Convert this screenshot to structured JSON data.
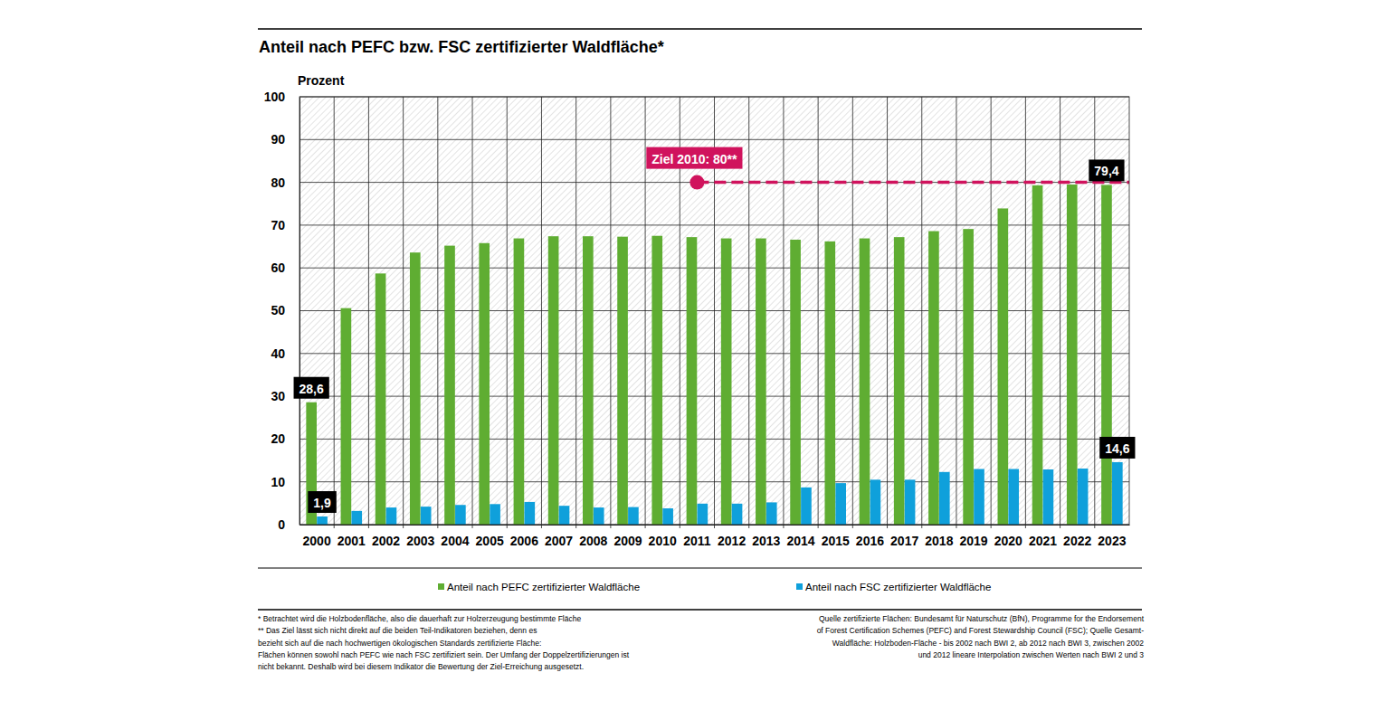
{
  "chart_data": {
    "type": "bar",
    "title": "Anteil nach PEFC bzw. FSC zertifizierter Waldfläche*",
    "y_label": "Prozent",
    "categories": [
      "2000",
      "2001",
      "2002",
      "2003",
      "2004",
      "2005",
      "2006",
      "2007",
      "2008",
      "2009",
      "2010",
      "2011",
      "2012",
      "2013",
      "2014",
      "2015",
      "2016",
      "2017",
      "2018",
      "2019",
      "2020",
      "2021",
      "2022",
      "2023"
    ],
    "series": [
      {
        "name": "Anteil nach PEFC zertifizierter Waldfläche",
        "color": "#5fad32",
        "values": [
          28.6,
          50.6,
          58.7,
          63.6,
          65.2,
          65.8,
          66.9,
          67.4,
          67.4,
          67.3,
          67.5,
          67.2,
          66.9,
          66.9,
          66.6,
          66.2,
          66.9,
          67.2,
          68.6,
          69.1,
          73.9,
          79.3,
          79.5,
          79.4
        ],
        "value_labels": [
          "28,6",
          null,
          null,
          null,
          null,
          null,
          null,
          null,
          null,
          null,
          null,
          null,
          null,
          null,
          null,
          null,
          null,
          null,
          null,
          null,
          null,
          null,
          null,
          "79,4"
        ]
      },
      {
        "name": "Anteil nach FSC zertifizierter Waldfläche",
        "color": "#0fa0db",
        "values": [
          1.9,
          3.2,
          4.0,
          4.2,
          4.6,
          4.8,
          5.3,
          4.4,
          4.0,
          4.1,
          3.8,
          4.9,
          4.9,
          5.2,
          8.7,
          9.7,
          10.5,
          10.5,
          12.3,
          13.0,
          13.0,
          12.9,
          13.1,
          14.6
        ],
        "value_labels": [
          "1,9",
          null,
          null,
          null,
          null,
          null,
          null,
          null,
          null,
          null,
          null,
          null,
          null,
          null,
          null,
          null,
          null,
          null,
          null,
          null,
          null,
          null,
          null,
          "14,6"
        ]
      }
    ],
    "ylim": [
      0,
      100
    ],
    "yticks": [
      0,
      10,
      20,
      30,
      40,
      50,
      60,
      70,
      80,
      90,
      100
    ],
    "grid": true,
    "legend": "bottom",
    "target": {
      "label": "Ziel 2010: 80**",
      "value": 80,
      "from": "2011",
      "color": "#d0135d"
    },
    "notes": [
      "* Betrachtet wird die Holzbodenfläche, also die dauerhaft zur Holzerzeugung bestimmte Fläche",
      "** Das Ziel lässt sich nicht direkt auf die beiden Teil-Indikatoren beziehen, denn es",
      "bezieht sich auf die nach hochwertigen ökologischen Standards zertifizierte Fläche:",
      "Flächen können sowohl nach PEFC wie nach FSC zertifiziert sein. Der Umfang der Doppelzertifizierungen ist",
      "nicht bekannt. Deshalb wird bei diesem Indikator die Bewertung der Ziel-Erreichung ausgesetzt."
    ],
    "source": [
      "Quelle zertifizierte Flächen: Bundesamt für Naturschutz (BfN), Programme for the Endorsement",
      "of Forest Certification Schemes (PEFC) and Forest Stewardship Council (FSC); Quelle Gesamt-",
      "Waldfläche: Holzboden-Fläche - bis 2002 nach BWI 2, ab 2012 nach BWI 3, zwischen 2002",
      "und 2012 lineare Interpolation zwischen Werten nach BWI 2 und 3"
    ]
  }
}
